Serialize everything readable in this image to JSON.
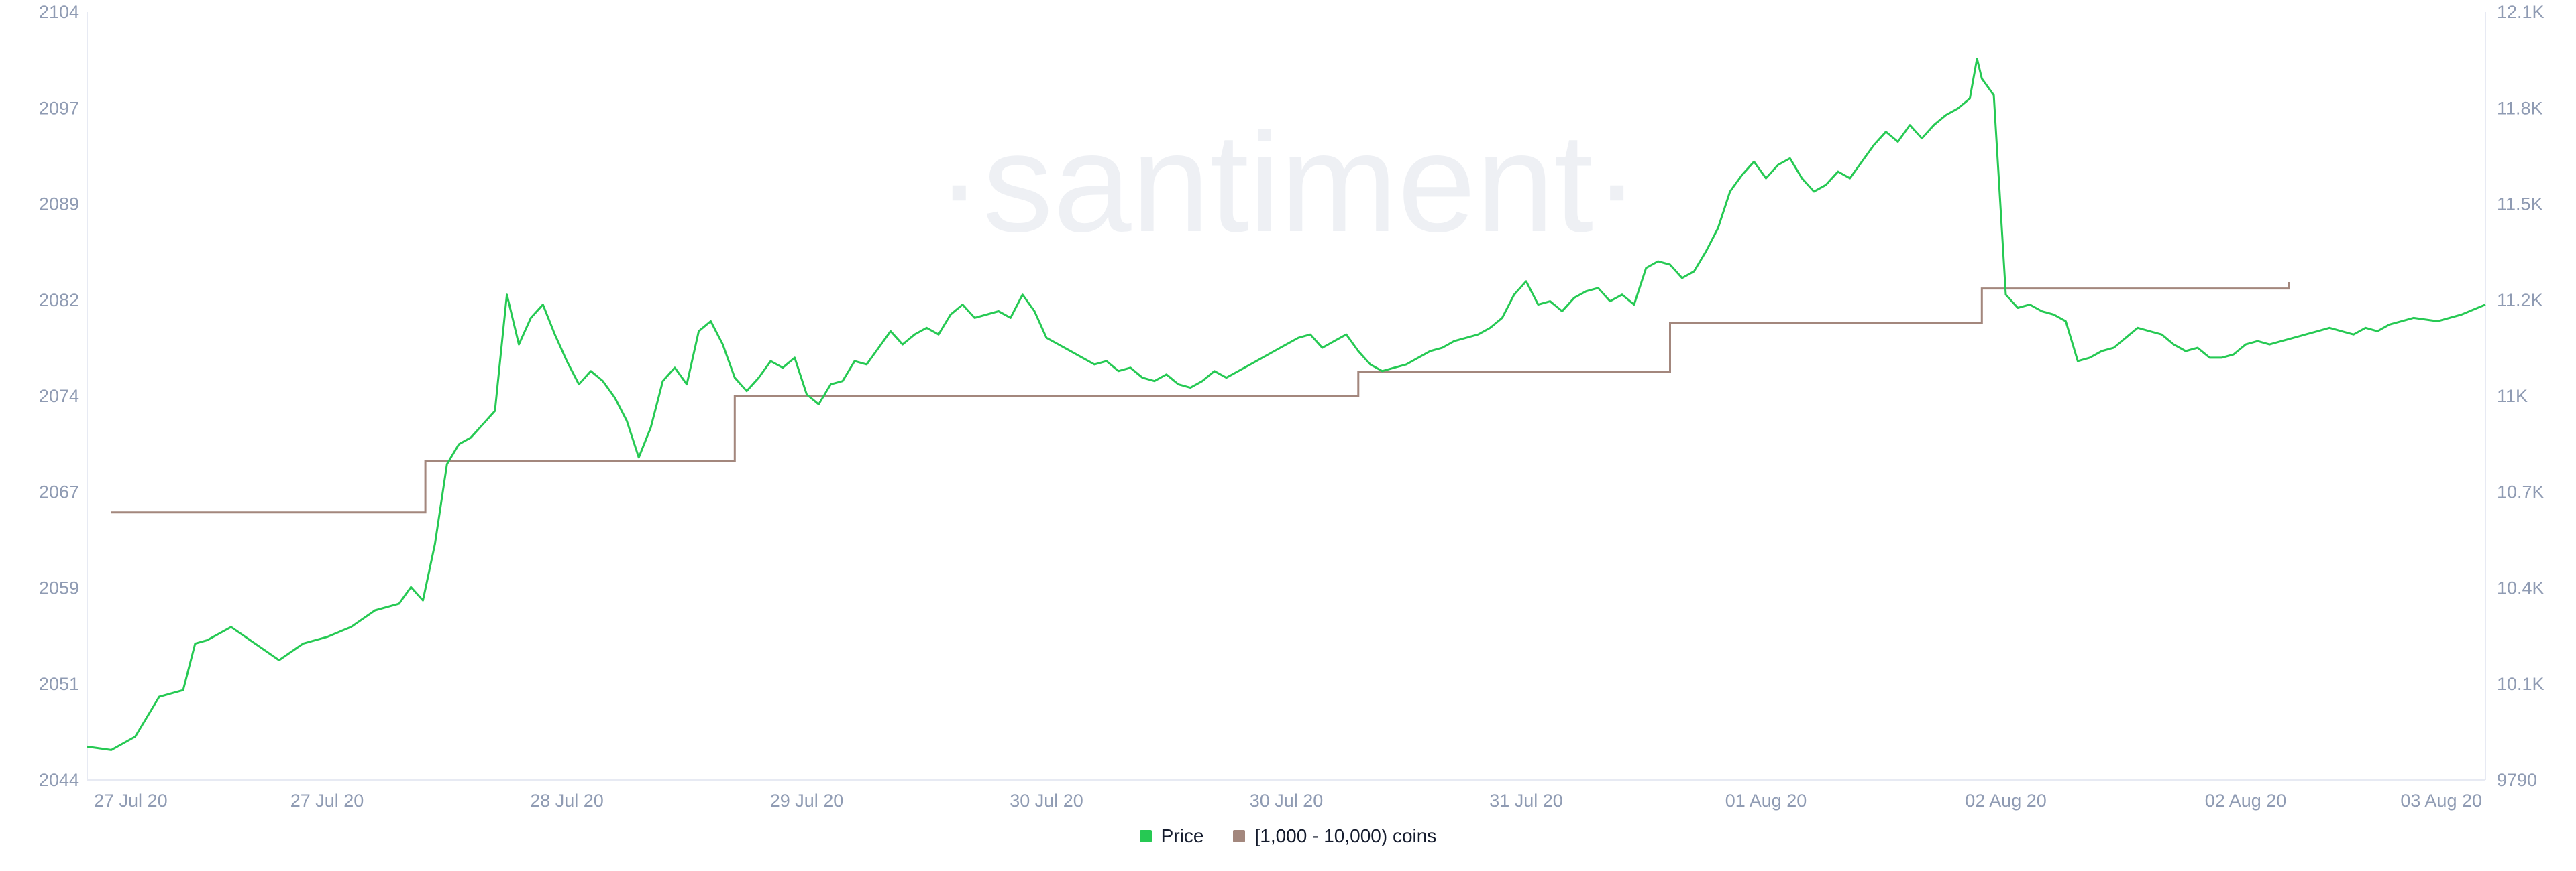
{
  "watermark": "·santiment·",
  "colors": {
    "price": "#26c953",
    "holders": "#a3877d",
    "axis_text": "#8f9bb3",
    "axis_line": "#e7eaf3"
  },
  "legend": {
    "price_label": "Price",
    "holders_label": "[1,000 - 10,000) coins"
  },
  "chart_data": {
    "type": "line",
    "title": "",
    "x_ticks": [
      "27 Jul 20",
      "27 Jul 20",
      "28 Jul 20",
      "29 Jul 20",
      "30 Jul 20",
      "30 Jul 20",
      "31 Jul 20",
      "01 Aug 20",
      "02 Aug 20",
      "02 Aug 20",
      "03 Aug 20"
    ],
    "x_range": [
      0,
      10
    ],
    "left_axis": {
      "ticks": [
        "2104",
        "2097",
        "2089",
        "2082",
        "2074",
        "2067",
        "2059",
        "2051",
        "2044"
      ],
      "range": [
        2044,
        2104
      ]
    },
    "right_axis": {
      "ticks": [
        "12.1K",
        "11.8K",
        "11.5K",
        "11.2K",
        "11K",
        "10.7K",
        "10.4K",
        "10.1K",
        "9790"
      ],
      "range": [
        9790,
        12100
      ]
    },
    "series": [
      {
        "name": "[1,000 - 10,000) coins",
        "axis": "left",
        "type": "step",
        "points": [
          [
            0.1,
            2064.9
          ],
          [
            1.41,
            2064.9
          ],
          [
            1.41,
            2068.9
          ],
          [
            2.7,
            2068.9
          ],
          [
            2.7,
            2074.0
          ],
          [
            5.3,
            2074.0
          ],
          [
            5.3,
            2075.9
          ],
          [
            6.6,
            2075.9
          ],
          [
            6.6,
            2079.7
          ],
          [
            7.9,
            2079.7
          ],
          [
            7.9,
            2082.4
          ],
          [
            9.18,
            2082.4
          ],
          [
            9.18,
            2082.9
          ]
        ]
      },
      {
        "name": "Price",
        "axis": "right",
        "type": "line",
        "points": [
          [
            0.0,
            9890
          ],
          [
            0.1,
            9880
          ],
          [
            0.2,
            9920
          ],
          [
            0.3,
            10040
          ],
          [
            0.4,
            10060
          ],
          [
            0.45,
            10200
          ],
          [
            0.5,
            10210
          ],
          [
            0.6,
            10250
          ],
          [
            0.7,
            10200
          ],
          [
            0.8,
            10150
          ],
          [
            0.9,
            10200
          ],
          [
            1.0,
            10220
          ],
          [
            1.1,
            10250
          ],
          [
            1.2,
            10300
          ],
          [
            1.3,
            10320
          ],
          [
            1.35,
            10370
          ],
          [
            1.4,
            10330
          ],
          [
            1.45,
            10500
          ],
          [
            1.5,
            10740
          ],
          [
            1.55,
            10800
          ],
          [
            1.6,
            10820
          ],
          [
            1.65,
            10860
          ],
          [
            1.7,
            10900
          ],
          [
            1.75,
            11250
          ],
          [
            1.8,
            11100
          ],
          [
            1.85,
            11180
          ],
          [
            1.9,
            11220
          ],
          [
            1.95,
            11130
          ],
          [
            2.0,
            11050
          ],
          [
            2.05,
            10980
          ],
          [
            2.1,
            11020
          ],
          [
            2.15,
            10990
          ],
          [
            2.2,
            10940
          ],
          [
            2.25,
            10870
          ],
          [
            2.3,
            10760
          ],
          [
            2.35,
            10850
          ],
          [
            2.4,
            10990
          ],
          [
            2.45,
            11030
          ],
          [
            2.5,
            10980
          ],
          [
            2.55,
            11140
          ],
          [
            2.6,
            11170
          ],
          [
            2.65,
            11100
          ],
          [
            2.7,
            11000
          ],
          [
            2.75,
            10960
          ],
          [
            2.8,
            11000
          ],
          [
            2.85,
            11050
          ],
          [
            2.9,
            11030
          ],
          [
            2.95,
            11060
          ],
          [
            3.0,
            10950
          ],
          [
            3.05,
            10920
          ],
          [
            3.1,
            10980
          ],
          [
            3.15,
            10990
          ],
          [
            3.2,
            11050
          ],
          [
            3.25,
            11040
          ],
          [
            3.3,
            11090
          ],
          [
            3.35,
            11140
          ],
          [
            3.4,
            11100
          ],
          [
            3.45,
            11130
          ],
          [
            3.5,
            11150
          ],
          [
            3.55,
            11130
          ],
          [
            3.6,
            11190
          ],
          [
            3.65,
            11220
          ],
          [
            3.7,
            11180
          ],
          [
            3.75,
            11190
          ],
          [
            3.8,
            11200
          ],
          [
            3.85,
            11180
          ],
          [
            3.9,
            11250
          ],
          [
            3.95,
            11200
          ],
          [
            4.0,
            11120
          ],
          [
            4.05,
            11100
          ],
          [
            4.1,
            11080
          ],
          [
            4.15,
            11060
          ],
          [
            4.2,
            11040
          ],
          [
            4.25,
            11050
          ],
          [
            4.3,
            11020
          ],
          [
            4.35,
            11030
          ],
          [
            4.4,
            11000
          ],
          [
            4.45,
            10990
          ],
          [
            4.5,
            11010
          ],
          [
            4.55,
            10980
          ],
          [
            4.6,
            10970
          ],
          [
            4.65,
            10990
          ],
          [
            4.7,
            11020
          ],
          [
            4.75,
            11000
          ],
          [
            4.8,
            11020
          ],
          [
            4.85,
            11040
          ],
          [
            4.9,
            11060
          ],
          [
            4.95,
            11080
          ],
          [
            5.0,
            11100
          ],
          [
            5.05,
            11120
          ],
          [
            5.1,
            11130
          ],
          [
            5.15,
            11090
          ],
          [
            5.2,
            11110
          ],
          [
            5.25,
            11130
          ],
          [
            5.3,
            11080
          ],
          [
            5.35,
            11040
          ],
          [
            5.4,
            11020
          ],
          [
            5.45,
            11030
          ],
          [
            5.5,
            11040
          ],
          [
            5.55,
            11060
          ],
          [
            5.6,
            11080
          ],
          [
            5.65,
            11090
          ],
          [
            5.7,
            11110
          ],
          [
            5.75,
            11120
          ],
          [
            5.8,
            11130
          ],
          [
            5.85,
            11150
          ],
          [
            5.9,
            11180
          ],
          [
            5.95,
            11250
          ],
          [
            6.0,
            11290
          ],
          [
            6.05,
            11220
          ],
          [
            6.1,
            11230
          ],
          [
            6.15,
            11200
          ],
          [
            6.2,
            11240
          ],
          [
            6.25,
            11260
          ],
          [
            6.3,
            11270
          ],
          [
            6.35,
            11230
          ],
          [
            6.4,
            11250
          ],
          [
            6.45,
            11220
          ],
          [
            6.5,
            11330
          ],
          [
            6.55,
            11350
          ],
          [
            6.6,
            11340
          ],
          [
            6.65,
            11300
          ],
          [
            6.7,
            11320
          ],
          [
            6.75,
            11380
          ],
          [
            6.8,
            11450
          ],
          [
            6.85,
            11560
          ],
          [
            6.9,
            11610
          ],
          [
            6.95,
            11650
          ],
          [
            7.0,
            11600
          ],
          [
            7.05,
            11640
          ],
          [
            7.1,
            11660
          ],
          [
            7.15,
            11600
          ],
          [
            7.2,
            11560
          ],
          [
            7.25,
            11580
          ],
          [
            7.3,
            11620
          ],
          [
            7.35,
            11600
          ],
          [
            7.4,
            11650
          ],
          [
            7.45,
            11700
          ],
          [
            7.5,
            11740
          ],
          [
            7.55,
            11710
          ],
          [
            7.6,
            11760
          ],
          [
            7.65,
            11720
          ],
          [
            7.7,
            11760
          ],
          [
            7.75,
            11790
          ],
          [
            7.8,
            11810
          ],
          [
            7.85,
            11840
          ],
          [
            7.88,
            11960
          ],
          [
            7.9,
            11900
          ],
          [
            7.95,
            11850
          ],
          [
            8.0,
            11250
          ],
          [
            8.05,
            11210
          ],
          [
            8.1,
            11220
          ],
          [
            8.15,
            11200
          ],
          [
            8.2,
            11190
          ],
          [
            8.25,
            11170
          ],
          [
            8.3,
            11050
          ],
          [
            8.35,
            11060
          ],
          [
            8.4,
            11080
          ],
          [
            8.45,
            11090
          ],
          [
            8.5,
            11120
          ],
          [
            8.55,
            11150
          ],
          [
            8.6,
            11140
          ],
          [
            8.65,
            11130
          ],
          [
            8.7,
            11100
          ],
          [
            8.75,
            11080
          ],
          [
            8.8,
            11090
          ],
          [
            8.85,
            11060
          ],
          [
            8.9,
            11060
          ],
          [
            8.95,
            11070
          ],
          [
            9.0,
            11100
          ],
          [
            9.05,
            11110
          ],
          [
            9.1,
            11100
          ],
          [
            9.15,
            11110
          ],
          [
            9.2,
            11120
          ],
          [
            9.25,
            11130
          ],
          [
            9.3,
            11140
          ],
          [
            9.35,
            11150
          ],
          [
            9.4,
            11140
          ],
          [
            9.45,
            11130
          ],
          [
            9.5,
            11150
          ],
          [
            9.55,
            11140
          ],
          [
            9.6,
            11160
          ],
          [
            9.65,
            11170
          ],
          [
            9.7,
            11180
          ],
          [
            9.8,
            11170
          ],
          [
            9.9,
            11190
          ],
          [
            10.0,
            11220
          ]
        ]
      }
    ],
    "legend_position": "bottom-center",
    "grid": false
  }
}
